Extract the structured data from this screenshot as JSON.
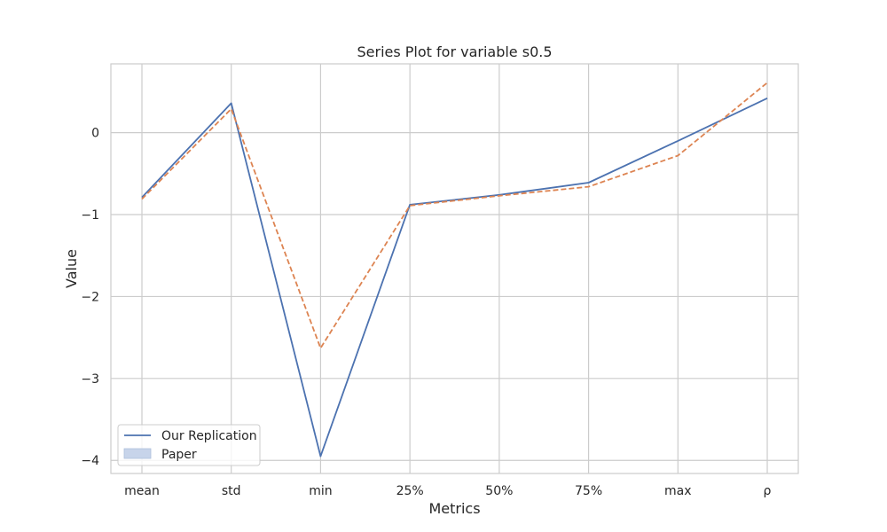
{
  "chart_data": {
    "type": "line",
    "title": "Series Plot for variable s0.5",
    "xlabel": "Metrics",
    "ylabel": "Value",
    "categories": [
      "mean",
      "std",
      "min",
      "25%",
      "50%",
      "75%",
      "max",
      "ρ"
    ],
    "yticks": [
      0,
      -1,
      -2,
      -3,
      -4
    ],
    "ytick_labels": [
      "0",
      "−1",
      "−2",
      "−3",
      "−4"
    ],
    "ylim": [
      -4.16,
      0.84
    ],
    "grid": true,
    "legend_position": "lower-left",
    "series": [
      {
        "name": "Our Replication",
        "values": [
          -0.79,
          0.36,
          -3.95,
          -0.88,
          -0.76,
          -0.61,
          -0.1,
          0.42
        ],
        "color": "#4c72b0",
        "style": "solid"
      },
      {
        "name": "Paper",
        "values": [
          -0.81,
          0.29,
          -2.63,
          -0.89,
          -0.77,
          -0.66,
          -0.28,
          0.61
        ],
        "color": "#dd8452",
        "style": "dashed",
        "legend_swatch_color": "#c7d4ea"
      }
    ]
  }
}
